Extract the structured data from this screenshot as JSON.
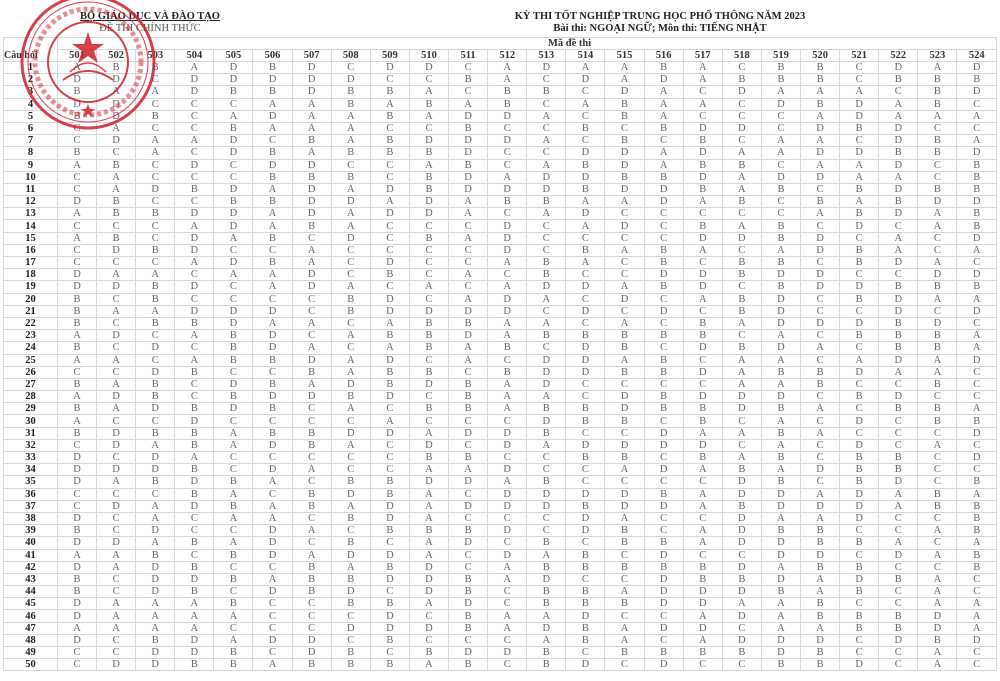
{
  "header_left": {
    "ministry": "BỘ GIÁO DỤC VÀ ĐÀO TẠO",
    "official": "ĐỀ THI CHÍNH THỨC"
  },
  "header_right": {
    "exam": "KỲ THI TỐT NGHIỆP TRUNG HỌC PHỔ THÔNG NĂM 2023",
    "subject": "Bài thi:  NGOẠI NGỮ; Môn thi: TIẾNG NHẬT"
  },
  "stamp": {
    "text": "BỘ GIÁO DỤC VÀ ĐÀO TẠO",
    "color": "#d0202a"
  },
  "table": {
    "question_label": "Câu hỏi",
    "code_label": "Mã đề thi",
    "codes": [
      "501",
      "502",
      "503",
      "504",
      "505",
      "506",
      "507",
      "508",
      "509",
      "510",
      "511",
      "512",
      "513",
      "514",
      "515",
      "516",
      "517",
      "518",
      "519",
      "520",
      "521",
      "522",
      "523",
      "524"
    ],
    "rows": [
      {
        "q": "1",
        "a": "ABBADBDCDDCADAABACBBCDAD"
      },
      {
        "q": "2",
        "a": "DDCDDDDDCCBACDADABBBCBBB"
      },
      {
        "q": "3",
        "a": "BAADBBDBBACBBCDACDAAACBD"
      },
      {
        "q": "4",
        "a": "DDCCCAABABABCABAACDBDABC"
      },
      {
        "q": "5",
        "a": "BDBCADAABADDACBACCCADAAA"
      },
      {
        "q": "6",
        "a": "CACCBAAACCBCCBCBDDCDBDCC"
      },
      {
        "q": "7",
        "a": "CDAADCBABDDDACBCBCAACDBA"
      },
      {
        "q": "8",
        "a": "BCACDBABBBDCCDDADAADDBBD"
      },
      {
        "q": "9",
        "a": "ABCDCDDCCABCABDABBCAADCB"
      },
      {
        "q": "10",
        "a": "CACCCBBBCBDADDBBDADDAACB"
      },
      {
        "q": "11",
        "a": "CADBDADADBDDDBDDBABCBDBB"
      },
      {
        "q": "12",
        "a": "DBCCBBDDADABBAADABCBABDD"
      },
      {
        "q": "13",
        "a": "ABBDDADADDACADCCCCCABDAB"
      },
      {
        "q": "14",
        "a": "CCCADABACCCDCADCBABCDCAB"
      },
      {
        "q": "15",
        "a": "ABCDABCDCBADCCCCDDBDCACD"
      },
      {
        "q": "16",
        "a": "CDBDCCACCCCDCBABACADBACA"
      },
      {
        "q": "17",
        "a": "CCCADBACDCCABACBCBBCBDAC"
      },
      {
        "q": "18",
        "a": "DAACAADCBCACBCCDDBDDCCDD"
      },
      {
        "q": "19",
        "a": "DDBDCADACACADDABDCBDDBBB"
      },
      {
        "q": "20",
        "a": "BCBCCCCBDCADACDCABDCBDAA"
      },
      {
        "q": "21",
        "a": "BAADDDCBDDDDCDCDCBDCCDCD"
      },
      {
        "q": "22",
        "a": "BCBBDAACABBAACACBADDDBDC"
      },
      {
        "q": "23",
        "a": "ADCABDCABBDABBBBBCACBBBA"
      },
      {
        "q": "24",
        "a": "BCDCBDACABABCDBCDBDACBBA"
      },
      {
        "q": "25",
        "a": "AACABBDADCACDDABCAACADAD"
      },
      {
        "q": "26",
        "a": "CCDBCCBABBCBDDBBDABBDAAC"
      },
      {
        "q": "27",
        "a": "BABCDBADBDBADCCCCAABCCBC"
      },
      {
        "q": "28",
        "a": "ADBCBDDBDCBAACDBDDDCBDCC"
      },
      {
        "q": "29",
        "a": "BADBDBCACBBABBDBBDBACBBA"
      },
      {
        "q": "30",
        "a": "ACCDCCCCACCCDBBCBCACDCBB"
      },
      {
        "q": "31",
        "a": "BDBBABBDDADDBCCDAABACCCD"
      },
      {
        "q": "32",
        "a": "CDABADBACDCDADDDDCACDCAC"
      },
      {
        "q": "33",
        "a": "DCDACCCCCBBCCBBCBABCBBCD"
      },
      {
        "q": "34",
        "a": "DDDBCDACCAADCCADABADBBCC"
      },
      {
        "q": "35",
        "a": "DABDBACBBDDABCCCCDBCBDCB"
      },
      {
        "q": "36",
        "a": "CCCBACBDBACDDDDBADDADABA"
      },
      {
        "q": "37",
        "a": "CDADBABADADDDBDDABDDDABB"
      },
      {
        "q": "38",
        "a": "DCACAACBDACCCDACCDAADCCB"
      },
      {
        "q": "39",
        "a": "BCDCCDACBBBDCDBCADBBCCAB"
      },
      {
        "q": "40",
        "a": "DDABADCBCADCBCBBADDBBACA"
      },
      {
        "q": "41",
        "a": "AABCBDADDACDABCDCCDDCDAB"
      },
      {
        "q": "42",
        "a": "DADBCCBABDCABBBBBDABBCCB"
      },
      {
        "q": "43",
        "a": "BCDDBABBDDBADCCDBBDADBAC"
      },
      {
        "q": "44",
        "a": "BCDBCDBDCDBCBBADDDBABCAC"
      },
      {
        "q": "45",
        "a": "DAAABCCBBADCBBBDDAABCCAA"
      },
      {
        "q": "46",
        "a": "DAAAACCCDCBAADCCADABBBDA"
      },
      {
        "q": "47",
        "a": "AAAACCCDDDBADBADDCAABBDA"
      },
      {
        "q": "48",
        "a": "DCBDADDCBCCCABACADDDCDBD"
      },
      {
        "q": "49",
        "a": "CCDDBCDBCBDDBCBBBBDBCCAC"
      },
      {
        "q": "50",
        "a": "CDDBBABBBABCBDCDCCBBDCAC"
      }
    ]
  }
}
